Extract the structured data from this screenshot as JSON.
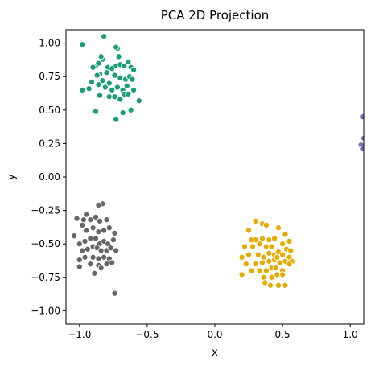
{
  "chart_data": {
    "type": "scatter",
    "title": "PCA 2D Projection",
    "xlabel": "x",
    "ylabel": "y",
    "xlim": [
      -1.1,
      1.1
    ],
    "ylim": [
      -1.1,
      1.1
    ],
    "x_ticks": [
      -1.0,
      -0.5,
      0.0,
      0.5,
      1.0
    ],
    "x_tick_labels": [
      "−1.0",
      "−0.5",
      "0.0",
      "0.5",
      "1.0"
    ],
    "y_ticks": [
      1.0,
      0.75,
      0.5,
      0.25,
      0.0,
      -0.25,
      -0.5,
      -0.75,
      -1.0
    ],
    "y_tick_labels": [
      "1.00",
      "0.75",
      "0.50",
      "0.25",
      "0.00",
      "−0.25",
      "−0.50",
      "−0.75",
      "−1.00"
    ],
    "grid": false,
    "legend": false,
    "marker_edge_color": "#ffffff",
    "series": [
      {
        "color": "#1b9e77",
        "points": [
          [
            -0.98,
            0.99
          ],
          [
            -0.82,
            1.05
          ],
          [
            -0.88,
            0.83
          ],
          [
            -0.9,
            0.82
          ],
          [
            -0.86,
            0.85
          ],
          [
            -0.83,
            0.88
          ],
          [
            -0.84,
            0.9
          ],
          [
            -0.79,
            0.82
          ],
          [
            -0.76,
            0.81
          ],
          [
            -0.73,
            0.83
          ],
          [
            -0.7,
            0.84
          ],
          [
            -0.67,
            0.83
          ],
          [
            -0.64,
            0.86
          ],
          [
            -0.62,
            0.82
          ],
          [
            -0.6,
            0.8
          ],
          [
            -0.72,
            0.96
          ],
          [
            -0.73,
            0.97
          ],
          [
            -0.71,
            0.9
          ],
          [
            -0.8,
            0.78
          ],
          [
            -0.85,
            0.77
          ],
          [
            -0.87,
            0.76
          ],
          [
            -0.83,
            0.72
          ],
          [
            -0.78,
            0.7
          ],
          [
            -0.74,
            0.76
          ],
          [
            -0.7,
            0.74
          ],
          [
            -0.66,
            0.73
          ],
          [
            -0.63,
            0.75
          ],
          [
            -0.61,
            0.73
          ],
          [
            -0.65,
            0.68
          ],
          [
            -0.68,
            0.65
          ],
          [
            -0.72,
            0.67
          ],
          [
            -0.76,
            0.65
          ],
          [
            -0.81,
            0.67
          ],
          [
            -0.86,
            0.69
          ],
          [
            -0.91,
            0.71
          ],
          [
            -0.98,
            0.65
          ],
          [
            -0.93,
            0.66
          ],
          [
            -0.85,
            0.61
          ],
          [
            -0.78,
            0.6
          ],
          [
            -0.74,
            0.6
          ],
          [
            -0.7,
            0.58
          ],
          [
            -0.67,
            0.62
          ],
          [
            -0.64,
            0.62
          ],
          [
            -0.6,
            0.65
          ],
          [
            -0.56,
            0.57
          ],
          [
            -0.62,
            0.5
          ],
          [
            -0.68,
            0.48
          ],
          [
            -0.88,
            0.49
          ],
          [
            -0.73,
            0.43
          ]
        ]
      },
      {
        "color": "#d95f02",
        "display_color": "#e6ab02",
        "points": [
          [
            0.3,
            -0.33
          ],
          [
            0.35,
            -0.35
          ],
          [
            0.38,
            -0.36
          ],
          [
            0.47,
            -0.38
          ],
          [
            0.25,
            -0.4
          ],
          [
            0.3,
            -0.47
          ],
          [
            0.27,
            -0.47
          ],
          [
            0.35,
            -0.46
          ],
          [
            0.4,
            -0.47
          ],
          [
            0.44,
            -0.46
          ],
          [
            0.52,
            -0.43
          ],
          [
            0.55,
            -0.48
          ],
          [
            0.22,
            -0.52
          ],
          [
            0.28,
            -0.52
          ],
          [
            0.33,
            -0.5
          ],
          [
            0.38,
            -0.52
          ],
          [
            0.42,
            -0.52
          ],
          [
            0.5,
            -0.5
          ],
          [
            0.53,
            -0.54
          ],
          [
            0.56,
            -0.55
          ],
          [
            0.2,
            -0.6
          ],
          [
            0.25,
            -0.58
          ],
          [
            0.32,
            -0.58
          ],
          [
            0.36,
            -0.6
          ],
          [
            0.4,
            -0.57
          ],
          [
            0.44,
            -0.58
          ],
          [
            0.47,
            -0.56
          ],
          [
            0.5,
            -0.58
          ],
          [
            0.55,
            -0.6
          ],
          [
            0.57,
            -0.63
          ],
          [
            0.23,
            -0.65
          ],
          [
            0.3,
            -0.65
          ],
          [
            0.35,
            -0.64
          ],
          [
            0.4,
            -0.63
          ],
          [
            0.44,
            -0.62
          ],
          [
            0.46,
            -0.6
          ],
          [
            0.48,
            -0.64
          ],
          [
            0.52,
            -0.63
          ],
          [
            0.55,
            -0.65
          ],
          [
            0.27,
            -0.7
          ],
          [
            0.33,
            -0.7
          ],
          [
            0.38,
            -0.7
          ],
          [
            0.42,
            -0.68
          ],
          [
            0.45,
            -0.68
          ],
          [
            0.5,
            -0.7
          ],
          [
            0.2,
            -0.73
          ],
          [
            0.36,
            -0.75
          ],
          [
            0.42,
            -0.75
          ],
          [
            0.46,
            -0.73
          ],
          [
            0.5,
            -0.73
          ],
          [
            0.37,
            -0.79
          ],
          [
            0.41,
            -0.81
          ],
          [
            0.47,
            -0.81
          ],
          [
            0.52,
            -0.81
          ]
        ]
      },
      {
        "color": "#7570b3",
        "points": [
          [
            1.09,
            0.45
          ],
          [
            1.1,
            0.29
          ],
          [
            1.08,
            0.24
          ],
          [
            1.09,
            0.21
          ]
        ]
      },
      {
        "color": "#666666",
        "points": [
          [
            -0.83,
            -0.2
          ],
          [
            -0.86,
            -0.21
          ],
          [
            -1.02,
            -0.31
          ],
          [
            -0.97,
            -0.32
          ],
          [
            -0.95,
            -0.28
          ],
          [
            -0.92,
            -0.32
          ],
          [
            -0.88,
            -0.3
          ],
          [
            -0.85,
            -0.33
          ],
          [
            -0.8,
            -0.32
          ],
          [
            -1.04,
            -0.44
          ],
          [
            -0.98,
            -0.36
          ],
          [
            -0.95,
            -0.4
          ],
          [
            -0.9,
            -0.38
          ],
          [
            -0.86,
            -0.41
          ],
          [
            -0.82,
            -0.4
          ],
          [
            -0.78,
            -0.38
          ],
          [
            -0.74,
            -0.42
          ],
          [
            -1.0,
            -0.5
          ],
          [
            -0.96,
            -0.48
          ],
          [
            -0.92,
            -0.46
          ],
          [
            -0.88,
            -0.46
          ],
          [
            -0.85,
            -0.5
          ],
          [
            -0.82,
            -0.48
          ],
          [
            -0.79,
            -0.5
          ],
          [
            -0.75,
            -0.47
          ],
          [
            -0.98,
            -0.55
          ],
          [
            -0.94,
            -0.54
          ],
          [
            -0.9,
            -0.52
          ],
          [
            -0.87,
            -0.53
          ],
          [
            -0.84,
            -0.55
          ],
          [
            -0.8,
            -0.55
          ],
          [
            -0.77,
            -0.53
          ],
          [
            -0.73,
            -0.55
          ],
          [
            -1.0,
            -0.62
          ],
          [
            -0.96,
            -0.6
          ],
          [
            -0.9,
            -0.6
          ],
          [
            -0.86,
            -0.61
          ],
          [
            -0.82,
            -0.6
          ],
          [
            -0.78,
            -0.61
          ],
          [
            -1.0,
            -0.67
          ],
          [
            -0.92,
            -0.65
          ],
          [
            -0.86,
            -0.66
          ],
          [
            -0.8,
            -0.65
          ],
          [
            -0.76,
            -0.64
          ],
          [
            -0.89,
            -0.72
          ],
          [
            -0.84,
            -0.68
          ],
          [
            -0.74,
            -0.87
          ]
        ]
      }
    ]
  }
}
